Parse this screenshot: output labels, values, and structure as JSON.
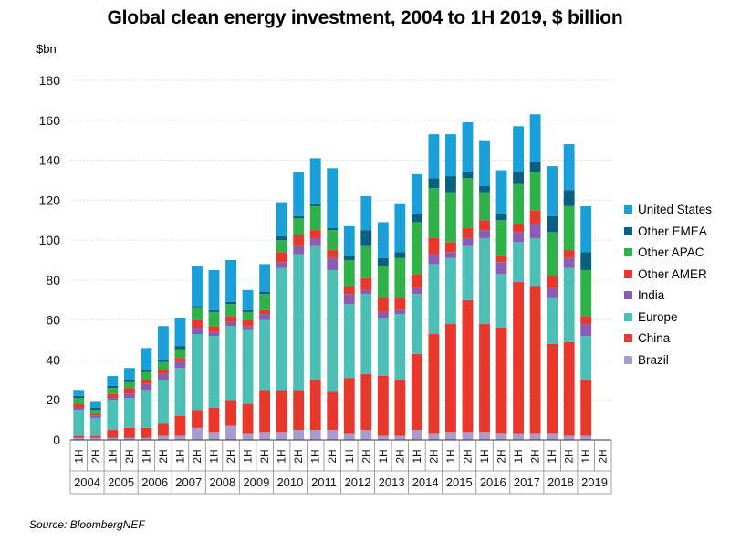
{
  "chart_data": {
    "type": "bar",
    "stacked": true,
    "title": "Global clean energy investment, 2004 to 1H 2019, $ billion",
    "ylabel": "$bn",
    "ylim": [
      0,
      180
    ],
    "yticks": [
      0,
      20,
      40,
      60,
      80,
      100,
      120,
      140,
      160,
      180
    ],
    "grid": true,
    "legend_position": "right",
    "categories": [
      "1H",
      "2H",
      "1H",
      "2H",
      "1H",
      "2H",
      "1H",
      "2H",
      "1H",
      "2H",
      "1H",
      "2H",
      "1H",
      "2H",
      "1H",
      "2H",
      "1H",
      "2H",
      "1H",
      "2H",
      "1H",
      "2H",
      "1H",
      "2H",
      "1H",
      "2H",
      "1H",
      "2H",
      "1H",
      "2H",
      "1H",
      "2H"
    ],
    "years": [
      "2004",
      "2005",
      "2006",
      "2007",
      "2008",
      "2009",
      "2010",
      "2011",
      "2012",
      "2013",
      "2014",
      "2015",
      "2016",
      "2017",
      "2018",
      "2019"
    ],
    "series": [
      {
        "name": "Brazil",
        "color": "#a89bd2",
        "values": [
          1,
          1,
          1,
          1,
          1,
          2,
          2,
          6,
          4,
          7,
          3,
          4,
          4,
          5,
          5,
          5,
          3,
          5,
          2,
          2,
          5,
          3,
          4,
          4,
          4,
          3,
          3,
          3,
          3,
          2,
          2,
          0
        ]
      },
      {
        "name": "China",
        "color": "#e8382c",
        "values": [
          1,
          1,
          4,
          5,
          5,
          6,
          10,
          9,
          12,
          13,
          15,
          21,
          21,
          20,
          25,
          19,
          28,
          28,
          30,
          28,
          38,
          50,
          54,
          66,
          54,
          53,
          76,
          74,
          45,
          47,
          28,
          0
        ]
      },
      {
        "name": "Europe",
        "color": "#4bbfb5",
        "values": [
          13,
          9,
          15,
          15,
          19,
          22,
          24,
          38,
          36,
          37,
          37,
          35,
          61,
          68,
          67,
          61,
          37,
          40,
          29,
          33,
          30,
          35,
          33,
          27,
          43,
          27,
          20,
          24,
          23,
          37,
          22,
          0
        ]
      },
      {
        "name": "India",
        "color": "#8b5bb5",
        "values": [
          1,
          1,
          1,
          2,
          3,
          3,
          3,
          3,
          2,
          2,
          2,
          3,
          3,
          4,
          4,
          6,
          5,
          2,
          3,
          2,
          3,
          5,
          3,
          4,
          4,
          6,
          5,
          7,
          5,
          5,
          6,
          0
        ]
      },
      {
        "name": "Other AMER",
        "color": "#e8382c",
        "values": [
          2,
          1,
          2,
          3,
          2,
          2,
          2,
          4,
          3,
          3,
          3,
          2,
          5,
          6,
          4,
          4,
          4,
          6,
          7,
          6,
          7,
          8,
          5,
          5,
          5,
          3,
          4,
          7,
          6,
          4,
          4,
          0
        ]
      },
      {
        "name": "Other APAC",
        "color": "#2fb24a",
        "values": [
          3,
          2,
          3,
          3,
          4,
          4,
          4,
          6,
          7,
          6,
          4,
          8,
          6,
          8,
          12,
          10,
          13,
          16,
          16,
          20,
          26,
          25,
          25,
          25,
          14,
          18,
          20,
          19,
          22,
          22,
          23,
          0
        ]
      },
      {
        "name": "Other EMEA",
        "color": "#0b5f80",
        "values": [
          1,
          1,
          1,
          1,
          1,
          1,
          2,
          1,
          1,
          1,
          1,
          1,
          2,
          1,
          1,
          1,
          2,
          8,
          4,
          3,
          4,
          5,
          8,
          3,
          3,
          3,
          6,
          5,
          8,
          8,
          9,
          0
        ]
      },
      {
        "name": "United States",
        "color": "#1aa0d9",
        "values": [
          3,
          3,
          5,
          6,
          11,
          17,
          14,
          20,
          20,
          21,
          10,
          14,
          17,
          22,
          23,
          30,
          15,
          17,
          18,
          24,
          20,
          22,
          21,
          25,
          23,
          22,
          23,
          24,
          25,
          23,
          23,
          0
        ]
      }
    ],
    "legend_order": [
      "United States",
      "Other EMEA",
      "Other APAC",
      "Other AMER",
      "India",
      "Europe",
      "China",
      "Brazil"
    ],
    "source": "Source: BloombergNEF"
  }
}
